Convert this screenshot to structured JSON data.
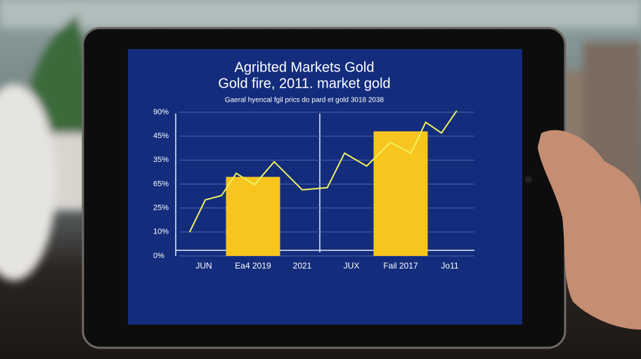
{
  "chart_data": {
    "type": "bar_line",
    "title": "Agribted Markets Gold",
    "subtitle": "Gold fire, 2011. market gold",
    "caption": "Gaeral hyencal fgil prics do pard et gold 3018 2038",
    "categories": [
      "JUN",
      "Ea4 2019",
      "2021",
      "JUX",
      "Fail 2017",
      "Jo11"
    ],
    "bar_color": "#f7c51e",
    "values": [
      null,
      3.3,
      null,
      null,
      5.2,
      null
    ],
    "line": {
      "color": "#eef060",
      "x": [
        -0.29,
        0.03,
        0.36,
        0.66,
        1.03,
        1.43,
        2.0,
        2.51,
        2.86,
        3.31,
        3.79,
        4.21,
        4.51,
        4.83,
        5.14
      ],
      "values": [
        0.99,
        2.34,
        2.52,
        3.45,
        2.97,
        3.93,
        2.76,
        2.85,
        4.29,
        3.75,
        4.74,
        4.29,
        5.58,
        5.13,
        6.06
      ]
    },
    "xlim": [
      -0.5,
      5.5
    ],
    "ylim": [
      0,
      6.2
    ],
    "yticks": [
      {
        "value": 0,
        "label": "0%"
      },
      {
        "value": 1,
        "label": "10%"
      },
      {
        "value": 2,
        "label": "25%"
      },
      {
        "value": 3,
        "label": "65%"
      },
      {
        "value": 4,
        "label": "35%"
      },
      {
        "value": 5,
        "label": "45%"
      },
      {
        "value": 6,
        "label": "90%"
      }
    ],
    "grid": true
  }
}
